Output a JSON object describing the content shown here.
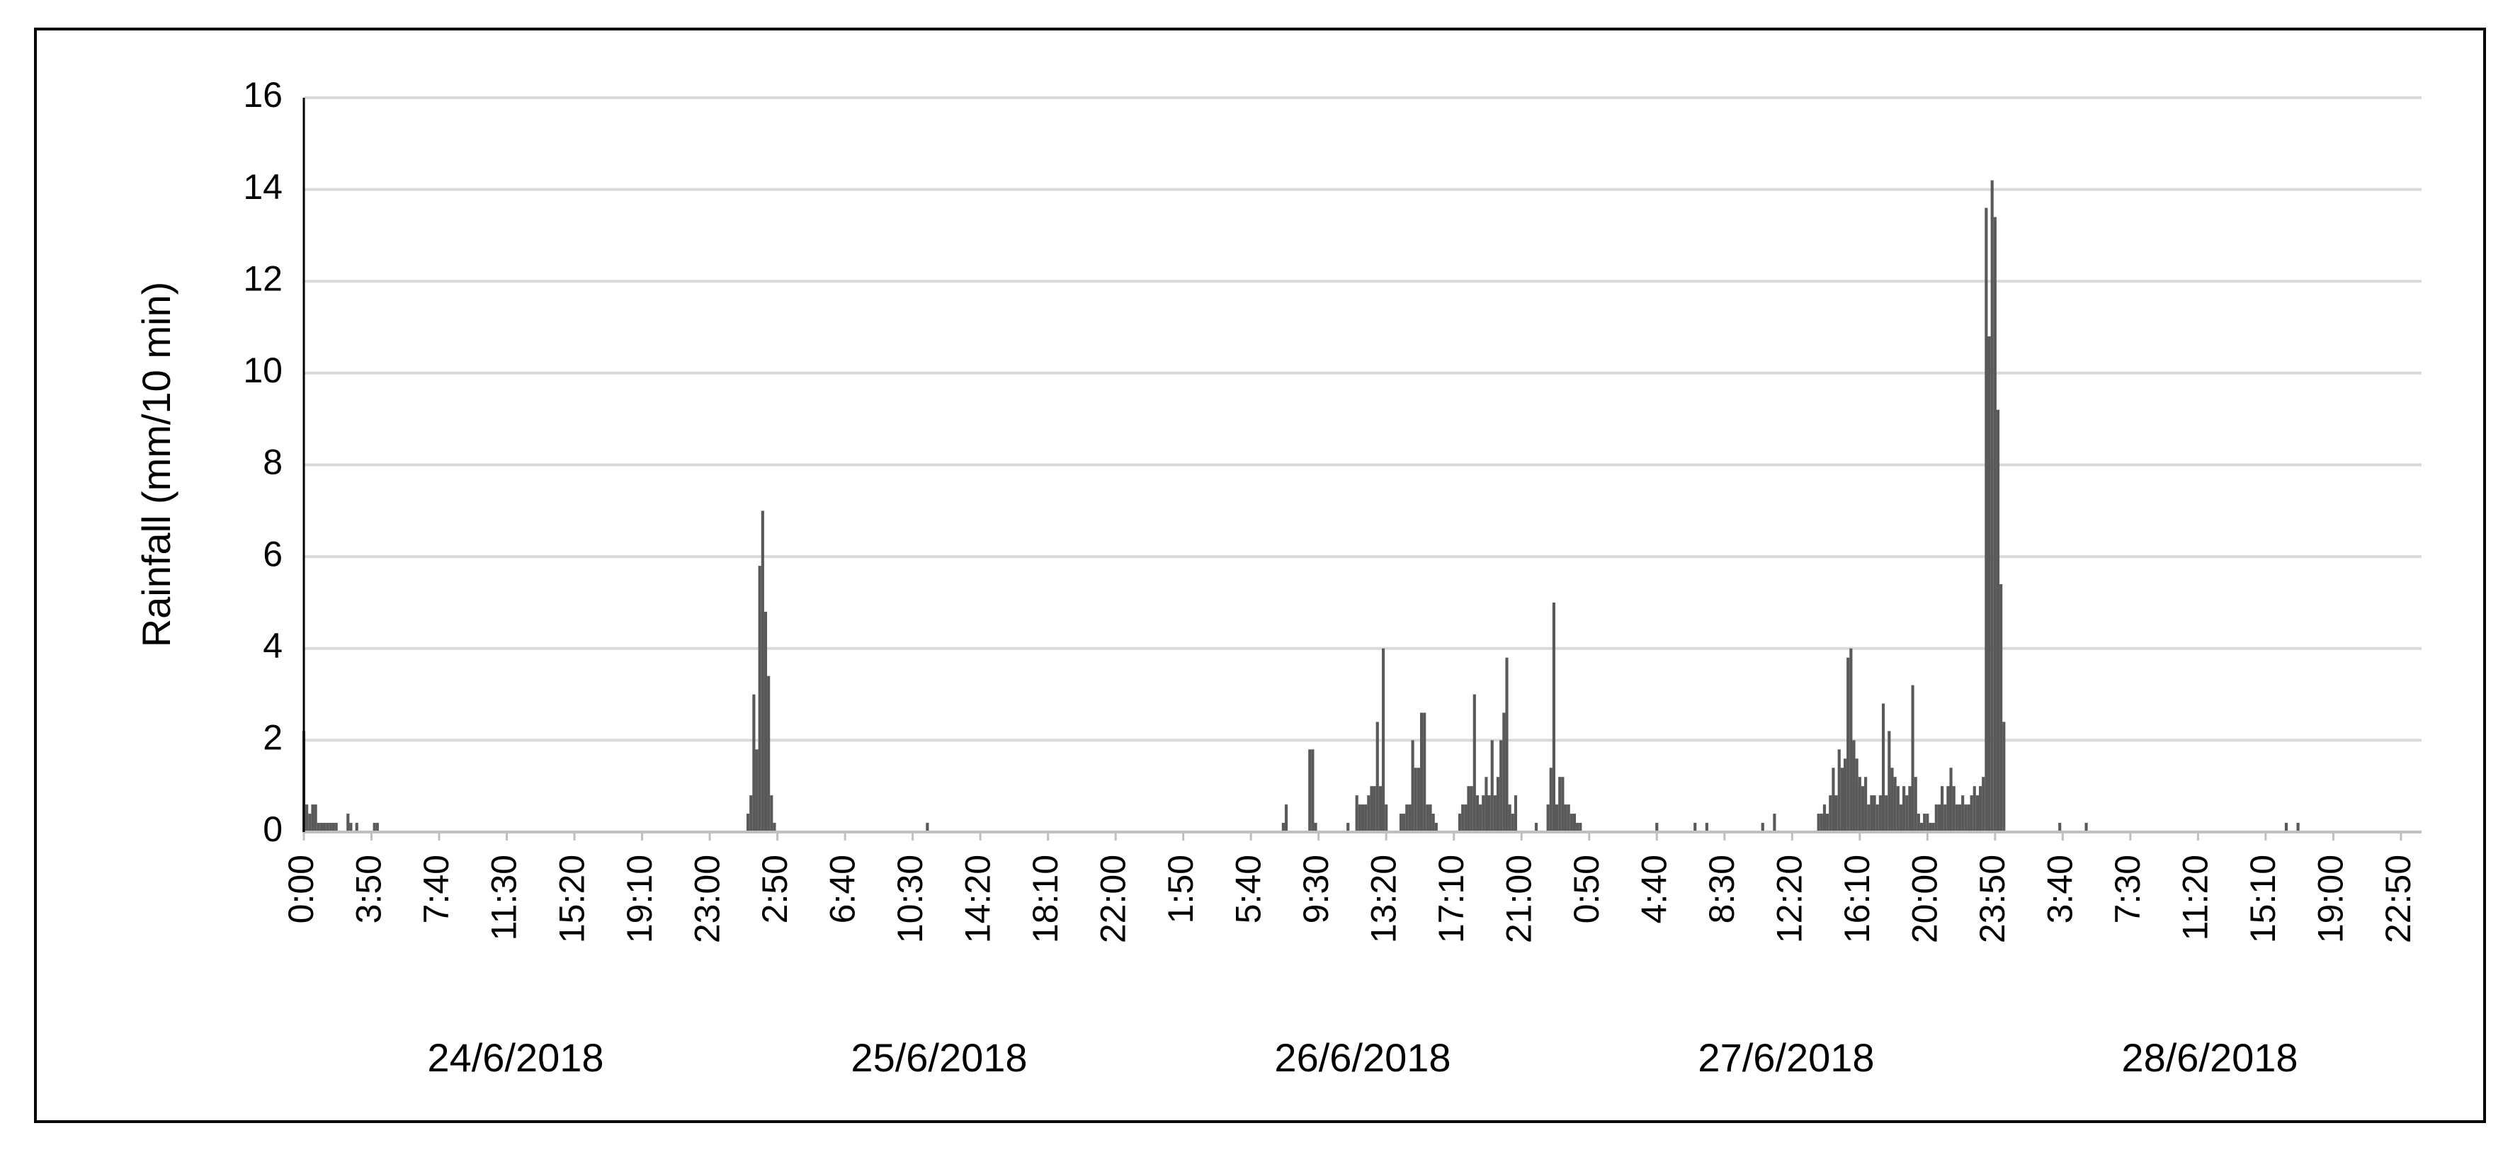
{
  "chart_data": {
    "type": "bar",
    "y_label": "Rainfall (mm/10 min)",
    "color": "#595959",
    "grid": true,
    "ylim": [
      0,
      16
    ],
    "yticks": [
      0,
      2,
      4,
      6,
      8,
      10,
      12,
      14,
      16
    ],
    "xlim": [
      0,
      7200
    ],
    "xticks": [
      {
        "value": 0,
        "label": "0:00"
      },
      {
        "value": 230,
        "label": "3:50"
      },
      {
        "value": 460,
        "label": "7:40"
      },
      {
        "value": 690,
        "label": "11:30"
      },
      {
        "value": 920,
        "label": "15:20"
      },
      {
        "value": 1150,
        "label": "19:10"
      },
      {
        "value": 1380,
        "label": "23:00"
      },
      {
        "value": 1610,
        "label": "2:50"
      },
      {
        "value": 1840,
        "label": "6:40"
      },
      {
        "value": 2070,
        "label": "10:30"
      },
      {
        "value": 2300,
        "label": "14:20"
      },
      {
        "value": 2530,
        "label": "18:10"
      },
      {
        "value": 2760,
        "label": "22:00"
      },
      {
        "value": 2990,
        "label": "1:50"
      },
      {
        "value": 3220,
        "label": "5:40"
      },
      {
        "value": 3450,
        "label": "9:30"
      },
      {
        "value": 3680,
        "label": "13:20"
      },
      {
        "value": 3910,
        "label": "17:10"
      },
      {
        "value": 4140,
        "label": "21:00"
      },
      {
        "value": 4370,
        "label": "0:50"
      },
      {
        "value": 4600,
        "label": "4:40"
      },
      {
        "value": 4830,
        "label": "8:30"
      },
      {
        "value": 5060,
        "label": "12:20"
      },
      {
        "value": 5290,
        "label": "16:10"
      },
      {
        "value": 5520,
        "label": "20:00"
      },
      {
        "value": 5750,
        "label": "23:50"
      },
      {
        "value": 5980,
        "label": "3:40"
      },
      {
        "value": 6210,
        "label": "7:30"
      },
      {
        "value": 6440,
        "label": "11:20"
      },
      {
        "value": 6670,
        "label": "15:10"
      },
      {
        "value": 6900,
        "label": "19:00"
      },
      {
        "value": 7130,
        "label": "22:50"
      }
    ],
    "date_labels": [
      "24/6/2018",
      "25/6/2018",
      "26/6/2018",
      "27/6/2018",
      "28/6/2018"
    ],
    "x": [
      0,
      10,
      20,
      30,
      40,
      50,
      60,
      70,
      80,
      90,
      100,
      110,
      150,
      160,
      180,
      240,
      250,
      1510,
      1520,
      1530,
      1540,
      1550,
      1560,
      1570,
      1580,
      1590,
      1600,
      2120,
      3330,
      3340,
      3420,
      3430,
      3440,
      3550,
      3580,
      3590,
      3600,
      3610,
      3620,
      3630,
      3640,
      3650,
      3660,
      3670,
      3680,
      3730,
      3740,
      3750,
      3760,
      3770,
      3780,
      3790,
      3800,
      3810,
      3820,
      3830,
      3840,
      3850,
      3930,
      3940,
      3950,
      3960,
      3970,
      3980,
      3990,
      4000,
      4010,
      4020,
      4030,
      4040,
      4050,
      4060,
      4070,
      4080,
      4090,
      4100,
      4110,
      4120,
      4190,
      4230,
      4240,
      4250,
      4260,
      4270,
      4280,
      4290,
      4300,
      4310,
      4320,
      4330,
      4340,
      4600,
      4730,
      4770,
      4960,
      5000,
      5150,
      5160,
      5170,
      5180,
      5190,
      5200,
      5210,
      5220,
      5230,
      5240,
      5250,
      5260,
      5270,
      5280,
      5290,
      5300,
      5310,
      5320,
      5330,
      5340,
      5350,
      5360,
      5370,
      5380,
      5390,
      5400,
      5410,
      5420,
      5430,
      5440,
      5450,
      5460,
      5470,
      5480,
      5490,
      5500,
      5510,
      5520,
      5530,
      5540,
      5550,
      5560,
      5570,
      5580,
      5590,
      5600,
      5610,
      5620,
      5630,
      5640,
      5650,
      5660,
      5670,
      5680,
      5690,
      5700,
      5710,
      5720,
      5730,
      5740,
      5750,
      5760,
      5770,
      5780,
      5970,
      6060,
      6740,
      6780
    ],
    "values": [
      2.2,
      0.6,
      0.4,
      0.6,
      0.6,
      0.2,
      0.2,
      0.2,
      0.2,
      0.2,
      0.2,
      0.2,
      0.4,
      0.2,
      0.2,
      0.2,
      0.2,
      0.4,
      0.8,
      3.0,
      1.8,
      5.8,
      7.0,
      4.8,
      3.4,
      0.8,
      0.2,
      0.2,
      0.2,
      0.6,
      1.8,
      1.8,
      0.2,
      0.2,
      0.8,
      0.6,
      0.6,
      0.6,
      0.8,
      1.0,
      1.0,
      2.4,
      1.0,
      4.0,
      0.6,
      0.4,
      0.4,
      0.6,
      0.6,
      2.0,
      1.4,
      1.4,
      2.6,
      2.6,
      0.6,
      0.6,
      0.4,
      0.2,
      0.4,
      0.6,
      0.6,
      1.0,
      1.0,
      3.0,
      0.8,
      0.6,
      0.8,
      1.2,
      0.8,
      2.0,
      0.8,
      1.2,
      2.0,
      2.6,
      3.8,
      0.6,
      0.4,
      0.8,
      0.2,
      0.6,
      1.4,
      5.0,
      0.6,
      1.2,
      1.2,
      0.6,
      0.6,
      0.4,
      0.4,
      0.2,
      0.2,
      0.2,
      0.2,
      0.2,
      0.2,
      0.4,
      0.4,
      0.4,
      0.6,
      0.4,
      0.8,
      1.4,
      0.8,
      1.8,
      1.4,
      1.6,
      3.8,
      4.0,
      2.0,
      1.6,
      1.2,
      1.0,
      1.2,
      0.6,
      0.8,
      0.8,
      0.6,
      0.8,
      2.8,
      0.8,
      2.2,
      1.4,
      1.2,
      1.0,
      0.6,
      1.0,
      0.8,
      1.0,
      3.2,
      1.2,
      0.4,
      0.2,
      0.4,
      0.4,
      0.2,
      0.2,
      0.6,
      0.6,
      1.0,
      0.6,
      1.0,
      1.4,
      1.0,
      0.6,
      0.6,
      0.8,
      0.6,
      0.6,
      0.8,
      1.0,
      0.8,
      1.0,
      1.2,
      13.6,
      10.8,
      14.2,
      13.4,
      9.2,
      5.4,
      2.4,
      0.2,
      0.2,
      0.2,
      0.2
    ]
  }
}
